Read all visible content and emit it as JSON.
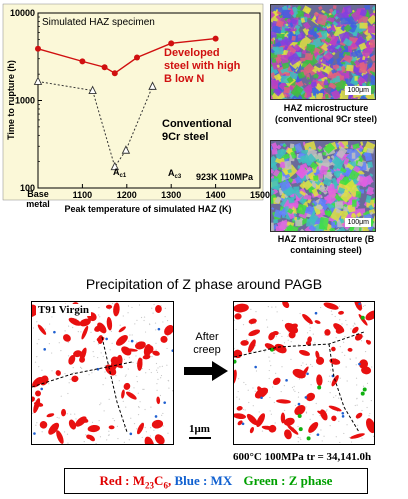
{
  "chart_data": {
    "type": "line",
    "title": "Simulated HAZ specimen",
    "xlabel": "Peak temperature of simulated HAZ  (K)",
    "ylabel": "Time to rupture  (h)",
    "x_ticks": [
      "1100",
      "1200",
      "1300",
      "1400",
      "1500"
    ],
    "x_base_label": "Base metal",
    "y_ticks": [
      "100",
      "1000",
      "10000"
    ],
    "xlim": [
      1000,
      1500
    ],
    "ylim": [
      100,
      10000
    ],
    "y_scale": "log",
    "condition": "923K 110MPa",
    "series": [
      {
        "name": "Developed steel with high B low N",
        "color": "#d01010",
        "style": "solid",
        "marker": "circle",
        "points": [
          [
            1000,
            3900
          ],
          [
            1100,
            2800
          ],
          [
            1150,
            2400
          ],
          [
            1173,
            2050
          ],
          [
            1223,
            3100
          ],
          [
            1300,
            4500
          ],
          [
            1400,
            5100
          ]
        ]
      },
      {
        "name": "Conventional 9Cr steel",
        "color": "#333333",
        "style": "dotted",
        "marker": "triangle",
        "points": [
          [
            1000,
            1650
          ],
          [
            1123,
            1300
          ],
          [
            1173,
            175
          ],
          [
            1198,
            270
          ],
          [
            1258,
            1450
          ]
        ]
      }
    ],
    "annotations": [
      "Ac1",
      "Ac3"
    ],
    "grid": false,
    "background": "#fbf8d8"
  },
  "micrographs": {
    "top": {
      "caption": "HAZ microstructure (conventional 9Cr steel)",
      "scale": "100μm"
    },
    "bottom": {
      "caption": "HAZ microstructure (B containing steel)",
      "scale": "100μm"
    }
  },
  "precipitation": {
    "title": "Precipitation of Z phase around PAGB",
    "left_label": "T91  Virgin",
    "arrow_label": "After creep",
    "scale_bar": "1μm",
    "condition": "600°C  100MPa  tr = 34,141.0h",
    "legend": {
      "red": "Red : M23C6,",
      "blue": "Blue : MX",
      "green": "Green : Z phase"
    }
  }
}
